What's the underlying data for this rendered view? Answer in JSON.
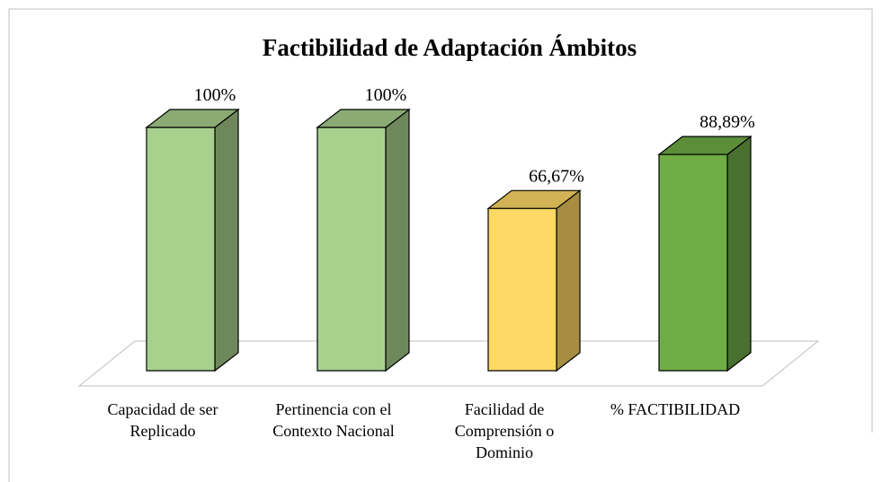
{
  "chart_data": {
    "type": "bar3d",
    "title": "Factibilidad de Adaptación Ámbitos",
    "categories": [
      "Capacidad de ser Replicado",
      "Pertinencia con el Contexto Nacional",
      "Facilidad de Comprensión o Dominio",
      "% FACTIBILIDAD"
    ],
    "values": [
      100,
      100,
      66.67,
      88.89
    ],
    "value_labels": [
      "100%",
      "100%",
      "66,67%",
      "88,89%"
    ],
    "colors": [
      "#a9d18e",
      "#a9d18e",
      "#ffd966",
      "#70ad47"
    ],
    "ylim": [
      0,
      100
    ]
  }
}
